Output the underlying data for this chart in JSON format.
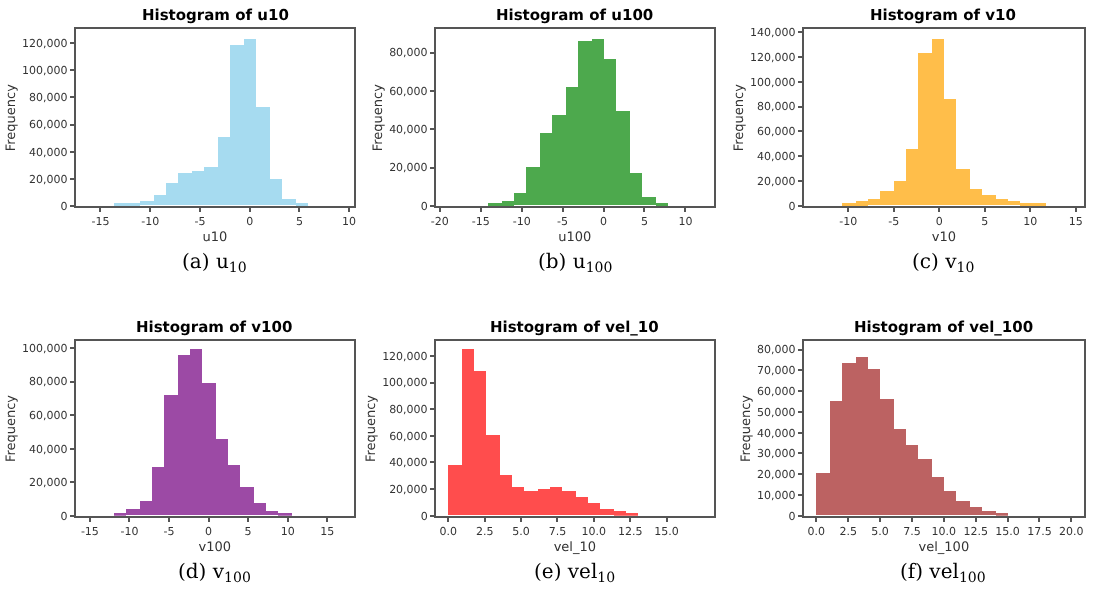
{
  "chart_data": [
    {
      "type": "histogram",
      "title": "Histogram of u10",
      "xlabel": "u10",
      "ylabel": "Frequency",
      "color": "#a6dbf0",
      "bins": [
        -16.25,
        -14.95,
        -13.65,
        -12.35,
        -11.05,
        -9.75,
        -8.45,
        -7.15,
        -5.85,
        -4.55,
        -3.25,
        -1.95,
        -0.65,
        0.65,
        1.95,
        3.25,
        4.55,
        5.85,
        7.15,
        8.45,
        9.75
      ],
      "values": [
        0,
        0,
        1000,
        1000,
        3000,
        7000,
        17000,
        24000,
        26000,
        28000,
        50000,
        118000,
        122000,
        73000,
        20000,
        5000,
        1000,
        0,
        0,
        0
      ],
      "xlim": [
        -17.5,
        10.5
      ],
      "xticks": [
        -15,
        -10,
        -5,
        0,
        5,
        10
      ],
      "ylim": [
        0,
        130000
      ],
      "yticks": [
        0,
        {
          "value": 20000,
          "label": "20,000"
        },
        {
          "value": 40000,
          "label": "40,000"
        },
        {
          "value": 60000,
          "label": "60,000"
        },
        {
          "value": 80000,
          "label": "80,000"
        },
        {
          "value": 100000,
          "label": "100,000"
        },
        {
          "value": 120000,
          "label": "120,000"
        }
      ],
      "annotations": [
        "(a) u$_{10}$"
      ]
    },
    {
      "type": "histogram",
      "title": "Histogram of u100",
      "xlabel": "u100",
      "ylabel": "Frequency",
      "color": "#4da94d",
      "bins": [
        -18.84,
        -17.27,
        -15.7,
        -14.13,
        -12.56,
        -10.99,
        -9.42,
        -7.85,
        -6.28,
        -4.71,
        -3.14,
        -1.57,
        0,
        1.57,
        3.14,
        4.71,
        6.28,
        7.85,
        9.42,
        10.99,
        12.56
      ],
      "values": [
        0,
        0,
        0,
        1000,
        2000,
        7000,
        20000,
        38000,
        47000,
        62000,
        86000,
        87000,
        76000,
        49000,
        17000,
        4000,
        1000,
        0,
        0,
        0
      ],
      "xlim": [
        -20.5,
        13.5
      ],
      "xticks": [
        -20,
        -15,
        -10,
        -5,
        0,
        5,
        10
      ],
      "ylim": [
        0,
        92000
      ],
      "yticks": [
        0,
        {
          "value": 20000,
          "label": "20,000"
        },
        {
          "value": 40000,
          "label": "40,000"
        },
        {
          "value": 60000,
          "label": "60,000"
        },
        {
          "value": 80000,
          "label": "80,000"
        }
      ],
      "annotations": [
        "(b) u$_{100}$"
      ]
    },
    {
      "type": "histogram",
      "title": "Histogram of v10",
      "xlabel": "v10",
      "ylabel": "Frequency",
      "color": "#ffbe4a",
      "bins": [
        -13.5,
        -12.1,
        -10.7,
        -9.3,
        -7.9,
        -6.5,
        -5.1,
        -3.7,
        -2.3,
        -0.9,
        0.5,
        1.9,
        3.3,
        4.7,
        6.1,
        7.5,
        8.9,
        10.3,
        11.7,
        13.1,
        14.5
      ],
      "values": [
        0,
        0,
        2000,
        3000,
        6000,
        12000,
        20000,
        45000,
        122000,
        134000,
        86000,
        30000,
        14000,
        9000,
        6000,
        4000,
        2000,
        1000,
        0,
        0
      ],
      "xlim": [
        -14.9,
        15.9
      ],
      "xticks": [
        -10,
        -5,
        0,
        5,
        10,
        15
      ],
      "ylim": [
        0,
        142000
      ],
      "yticks": [
        0,
        {
          "value": 20000,
          "label": "20,000"
        },
        {
          "value": 40000,
          "label": "40,000"
        },
        {
          "value": 60000,
          "label": "60,000"
        },
        {
          "value": 80000,
          "label": "80,000"
        },
        {
          "value": 100000,
          "label": "100,000"
        },
        {
          "value": 120000,
          "label": "120,000"
        },
        {
          "value": 140000,
          "label": "140,000"
        }
      ],
      "annotations": [
        "(c) v$_{10}$"
      ]
    },
    {
      "type": "histogram",
      "title": "Histogram of v100",
      "xlabel": "v100",
      "ylabel": "Frequency",
      "color": "#9c4aa5",
      "bins": [
        -15.2,
        -13.6,
        -12.0,
        -10.4,
        -8.8,
        -7.2,
        -5.6,
        -4.0,
        -2.4,
        -0.8,
        0.8,
        2.4,
        4.0,
        5.6,
        7.2,
        8.8,
        10.4,
        12.0,
        13.6,
        15.2,
        16.8
      ],
      "values": [
        0,
        0,
        2000,
        4000,
        9000,
        29000,
        72000,
        96000,
        99000,
        79000,
        46000,
        30000,
        17000,
        8000,
        3000,
        2000,
        0,
        0,
        0,
        0
      ],
      "xlim": [
        -16.8,
        18.4
      ],
      "xticks": [
        -15,
        -10,
        -5,
        0,
        5,
        10,
        15
      ],
      "ylim": [
        0,
        104000
      ],
      "yticks": [
        0,
        {
          "value": 20000,
          "label": "20,000"
        },
        {
          "value": 40000,
          "label": "40,000"
        },
        {
          "value": 60000,
          "label": "60,000"
        },
        {
          "value": 80000,
          "label": "80,000"
        },
        {
          "value": 100000,
          "label": "100,000"
        }
      ],
      "annotations": [
        "(d) v$_{100}$"
      ]
    },
    {
      "type": "histogram",
      "title": "Histogram of vel_10",
      "xlabel": "vel_10",
      "ylabel": "Frequency",
      "color": "#ff4d4d",
      "bins": [
        0,
        0.87,
        1.74,
        2.61,
        3.48,
        4.35,
        5.22,
        6.09,
        6.96,
        7.83,
        8.7,
        9.57,
        10.44,
        11.31,
        12.18,
        13.05,
        13.92,
        14.79,
        15.66,
        16.53,
        17.4
      ],
      "values": [
        38000,
        125000,
        108000,
        61000,
        30000,
        22000,
        18000,
        20000,
        21000,
        19000,
        14000,
        9000,
        5000,
        3000,
        1000,
        0,
        0,
        0,
        0,
        0
      ],
      "xlim": [
        -0.87,
        18.27
      ],
      "xticks": [
        {
          "value": 0,
          "label": "0.0"
        },
        2.5,
        {
          "value": 5,
          "label": "5.0"
        },
        7.5,
        {
          "value": 10,
          "label": "10.0"
        },
        12.5,
        {
          "value": 15,
          "label": "15.0"
        }
      ],
      "ylim": [
        0,
        131000
      ],
      "yticks": [
        0,
        {
          "value": 20000,
          "label": "20,000"
        },
        {
          "value": 40000,
          "label": "40,000"
        },
        {
          "value": 60000,
          "label": "60,000"
        },
        {
          "value": 80000,
          "label": "80,000"
        },
        {
          "value": 100000,
          "label": "100,000"
        },
        {
          "value": 120000,
          "label": "120,000"
        }
      ],
      "annotations": [
        "(e) vel$_{10}$"
      ]
    },
    {
      "type": "histogram",
      "title": "Histogram of vel_100",
      "xlabel": "vel_100",
      "ylabel": "Frequency",
      "color": "#bc6262",
      "bins": [
        0,
        1,
        2,
        3,
        4,
        5,
        6,
        7,
        8,
        9,
        10,
        11,
        12,
        13,
        14,
        15,
        16,
        17,
        18,
        19,
        20
      ],
      "values": [
        20000,
        55000,
        73000,
        76000,
        71000,
        56000,
        42000,
        34000,
        27000,
        19000,
        12000,
        7000,
        4000,
        2000,
        1000,
        0,
        0,
        0,
        0,
        0
      ],
      "xlim": [
        -1,
        21
      ],
      "xticks": [
        {
          "value": 0,
          "label": "0.0"
        },
        2.5,
        {
          "value": 5,
          "label": "5.0"
        },
        7.5,
        {
          "value": 10,
          "label": "10.0"
        },
        12.5,
        {
          "value": 15,
          "label": "15.0"
        },
        17.5,
        {
          "value": 20,
          "label": "20.0"
        }
      ],
      "ylim": [
        0,
        84000
      ],
      "yticks": [
        0,
        {
          "value": 10000,
          "label": "10,000"
        },
        {
          "value": 20000,
          "label": "20,000"
        },
        {
          "value": 30000,
          "label": "30,000"
        },
        {
          "value": 40000,
          "label": "40,000"
        },
        {
          "value": 50000,
          "label": "50,000"
        },
        {
          "value": 60000,
          "label": "60,000"
        },
        {
          "value": 70000,
          "label": "70,000"
        },
        {
          "value": 80000,
          "label": "80,000"
        }
      ],
      "annotations": [
        "(f) vel$_{100}$"
      ]
    }
  ]
}
